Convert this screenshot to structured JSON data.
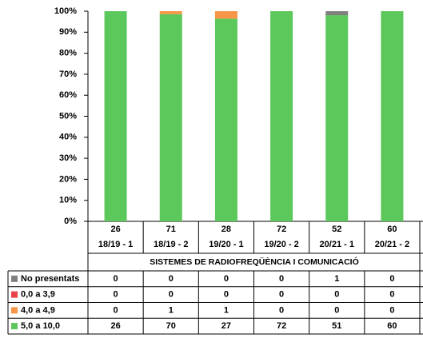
{
  "chart_data": {
    "type": "bar",
    "stacked": "percent",
    "categories": [
      "18/19 - 1",
      "18/19 - 2",
      "19/20 - 1",
      "19/20 - 2",
      "20/21 - 1",
      "20/21 - 2"
    ],
    "totals": [
      26,
      71,
      28,
      72,
      52,
      60
    ],
    "subtitle": "SISTEMES DE RADIOFREQÜÈNCIA I COMUNICACIÓ",
    "series": [
      {
        "name": "No presentats",
        "color": "#808080",
        "values": [
          0,
          0,
          0,
          0,
          1,
          0
        ]
      },
      {
        "name": "0,0 a 3,9",
        "color": "#e8434a",
        "values": [
          0,
          0,
          0,
          0,
          0,
          0
        ]
      },
      {
        "name": "4,0 a 4,9",
        "color": "#f79646",
        "values": [
          0,
          1,
          1,
          0,
          0,
          0
        ]
      },
      {
        "name": "5,0 a 10,0",
        "color": "#5cc85c",
        "values": [
          26,
          70,
          27,
          72,
          51,
          60
        ]
      }
    ],
    "ylim": [
      0,
      100
    ],
    "yticks": [
      {
        "value": 0,
        "label": "0%"
      },
      {
        "value": 10,
        "label": "10%"
      },
      {
        "value": 20,
        "label": "20%"
      },
      {
        "value": 30,
        "label": "30%"
      },
      {
        "value": 40,
        "label": "40%"
      },
      {
        "value": 50,
        "label": "50%"
      },
      {
        "value": 60,
        "label": "60%"
      },
      {
        "value": 70,
        "label": "70%"
      },
      {
        "value": 80,
        "label": "80%"
      },
      {
        "value": 90,
        "label": "90%"
      },
      {
        "value": 100,
        "label": "100%"
      }
    ],
    "grid": false
  }
}
